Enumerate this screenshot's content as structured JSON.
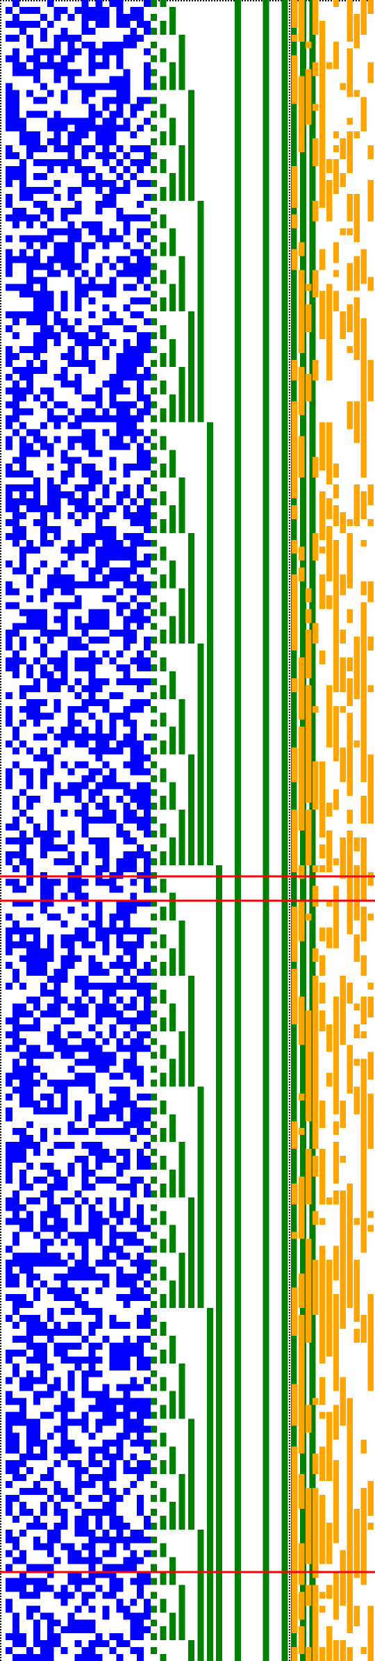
{
  "colors": {
    "background": "#ffffff",
    "noise": "#0000ff",
    "counter": "#008000",
    "output": "#ffa500",
    "marker": "#ff0000",
    "border": "#000000"
  },
  "grid": {
    "rows": 240,
    "noise_columns": 21,
    "output_columns": 12
  },
  "markers": [
    {
      "name": "marker-line-1",
      "row": 126.5
    },
    {
      "name": "marker-line-2",
      "row": 130
    },
    {
      "name": "marker-line-3",
      "row": 227
    }
  ],
  "counter_bars": {
    "constant_columns": [
      9,
      12,
      14,
      15,
      16,
      17
    ],
    "bit_columns": [
      0,
      1,
      2,
      3,
      4,
      5,
      6,
      7
    ]
  }
}
